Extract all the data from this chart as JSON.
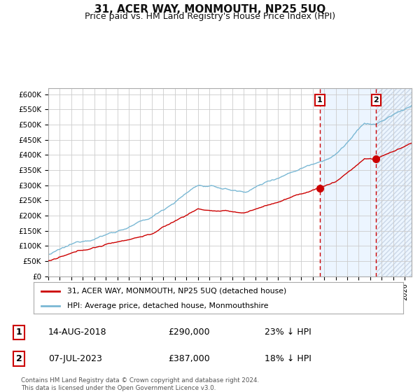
{
  "title": "31, ACER WAY, MONMOUTH, NP25 5UQ",
  "subtitle": "Price paid vs. HM Land Registry's House Price Index (HPI)",
  "title_fontsize": 11,
  "subtitle_fontsize": 9,
  "ylabel_ticks": [
    "£0",
    "£50K",
    "£100K",
    "£150K",
    "£200K",
    "£250K",
    "£300K",
    "£350K",
    "£400K",
    "£450K",
    "£500K",
    "£550K",
    "£600K"
  ],
  "ylabel_values": [
    0,
    50000,
    100000,
    150000,
    200000,
    250000,
    300000,
    350000,
    400000,
    450000,
    500000,
    550000,
    600000
  ],
  "ylim": [
    0,
    620000
  ],
  "x_start_year": 1995,
  "x_end_year": 2026,
  "hpi_color": "#7ab8d4",
  "price_color": "#cc0000",
  "point1_year": 2018.62,
  "point1_value": 290000,
  "point2_year": 2023.52,
  "point2_value": 387000,
  "vline1_year": 2018.62,
  "vline2_year": 2023.52,
  "shade_color": "#ddeeff",
  "legend_label1": "31, ACER WAY, MONMOUTH, NP25 5UQ (detached house)",
  "legend_label2": "HPI: Average price, detached house, Monmouthshire",
  "annotation1_date": "14-AUG-2018",
  "annotation1_price": "£290,000",
  "annotation1_hpi": "23% ↓ HPI",
  "annotation2_date": "07-JUL-2023",
  "annotation2_price": "£387,000",
  "annotation2_hpi": "18% ↓ HPI",
  "footer": "Contains HM Land Registry data © Crown copyright and database right 2024.\nThis data is licensed under the Open Government Licence v3.0.",
  "bg_color": "#ffffff",
  "grid_color": "#cccccc"
}
